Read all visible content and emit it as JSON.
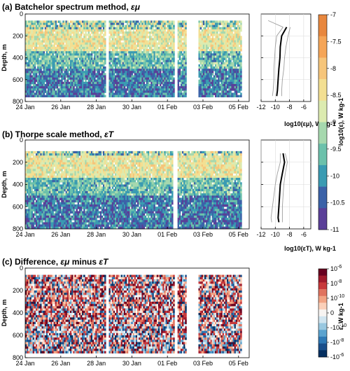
{
  "chart_data": [
    {
      "type": "heatmap",
      "panel_label": "(a)",
      "title": "Batchelor spectrum method, ",
      "title_symbol": "εμ",
      "ylabel": "Depth, m",
      "ylim": [
        800,
        0
      ],
      "y_ticks": [
        "0",
        "200",
        "400",
        "600",
        "800"
      ],
      "x_ticks": [
        "24 Jan",
        "26 Jan",
        "28 Jan",
        "30 Jan",
        "01 Feb",
        "03 Feb",
        "05 Feb"
      ],
      "x_range_days": [
        0,
        12.6
      ],
      "data_gaps_days": [
        [
          4.55,
          4.7
        ],
        [
          8.4,
          8.6
        ],
        [
          9.05,
          9.75
        ]
      ],
      "value_range_log10": [
        -11,
        -7
      ],
      "mean_profile": {
        "xlabel_sym": "log10(εμ), W kg-1",
        "x_ticks": [
          "-12",
          "-10",
          "-8",
          "-6"
        ],
        "xlim": [
          -12,
          -5
        ],
        "depth": [
          120,
          200,
          300,
          400,
          500,
          600,
          700,
          750
        ],
        "median": [
          -8.4,
          -9.1,
          -9.3,
          -9.35,
          -9.5,
          -9.6,
          -9.7,
          -9.8
        ],
        "lower": [
          -8.9,
          -9.8,
          -10.0,
          -10.1,
          -10.2,
          -10.2,
          -10.3,
          -10.4
        ],
        "upper": [
          -7.9,
          -8.2,
          -8.5,
          -8.7,
          -8.8,
          -9.0,
          -9.1,
          -9.1
        ],
        "upper_extension_depth": [
          60,
          120
        ],
        "upper_extension_value": [
          -11.0,
          -8.9
        ]
      }
    },
    {
      "type": "heatmap",
      "panel_label": "(b)",
      "title": "Thorpe scale method, ",
      "title_symbol": "εT",
      "ylabel": "Depth, m",
      "ylim": [
        800,
        0
      ],
      "y_ticks": [
        "0",
        "200",
        "400",
        "600",
        "800"
      ],
      "x_ticks": [
        "24 Jan",
        "26 Jan",
        "28 Jan",
        "30 Jan",
        "01 Feb",
        "03 Feb",
        "05 Feb"
      ],
      "x_range_days": [
        0,
        12.6
      ],
      "data_gaps_days": [
        [
          8.35,
          8.55
        ]
      ],
      "value_range_log10": [
        -11,
        -7
      ],
      "mean_profile": {
        "xlabel_sym": "log10(εT), W kg-1",
        "x_ticks": [
          "-12",
          "-10",
          "-8",
          "-6"
        ],
        "xlim": [
          -12,
          -5
        ],
        "depth": [
          120,
          200,
          300,
          400,
          500,
          600,
          700,
          740
        ],
        "median": [
          -8.9,
          -8.7,
          -9.0,
          -9.3,
          -9.4,
          -9.5,
          -9.6,
          -9.5
        ],
        "lower": [
          -9.3,
          -9.3,
          -9.7,
          -10.0,
          -10.2,
          -10.4,
          -10.6,
          -10.5
        ],
        "upper": [
          -8.6,
          -8.3,
          -8.6,
          -8.8,
          -8.9,
          -9.0,
          -9.0,
          -9.0
        ]
      }
    },
    {
      "type": "heatmap",
      "panel_label": "(c)",
      "title": "Difference, ",
      "title_symbol_1": "εμ",
      "title_mid": " minus ",
      "title_symbol_2": "εT",
      "ylabel": "Depth, m",
      "ylim": [
        800,
        0
      ],
      "y_ticks": [
        "0",
        "200",
        "400",
        "600",
        "800"
      ],
      "x_ticks": [
        "24 Jan",
        "26 Jan",
        "28 Jan",
        "30 Jan",
        "01 Feb",
        "03 Feb",
        "05 Feb"
      ],
      "x_range_days": [
        0,
        12.6
      ],
      "data_gaps_days": [
        [
          4.55,
          4.7
        ],
        [
          8.4,
          8.6
        ],
        [
          9.05,
          9.75
        ]
      ]
    }
  ],
  "colorbar_top": {
    "label": "log10(ε), W kg-1",
    "ticks": [
      "-7",
      "-7.5",
      "-8",
      "-8.5",
      "-9",
      "-9.5",
      "-10",
      "-10.5",
      "-11"
    ],
    "colors": [
      "#e8873e",
      "#f5a557",
      "#f6c57a",
      "#f3df92",
      "#dcebb0",
      "#a6d8ae",
      "#6cc1ab",
      "#3a9bb2",
      "#3b62a8",
      "#5a3f98"
    ]
  },
  "colorbar_bottom": {
    "label": "ε, W kg-1",
    "ticks": [
      "10-6",
      "10-8",
      "10-10",
      "0",
      "-10-10",
      "-10-8",
      "-10-6"
    ],
    "colors": [
      "#67001f",
      "#a01a2c",
      "#c7393b",
      "#e0735f",
      "#f2a484",
      "#fbd0b9",
      "#f7f4f2",
      "#d1e5f0",
      "#99c8e0",
      "#5ba3cf",
      "#2f79b5",
      "#1a4f8b",
      "#053061"
    ]
  }
}
